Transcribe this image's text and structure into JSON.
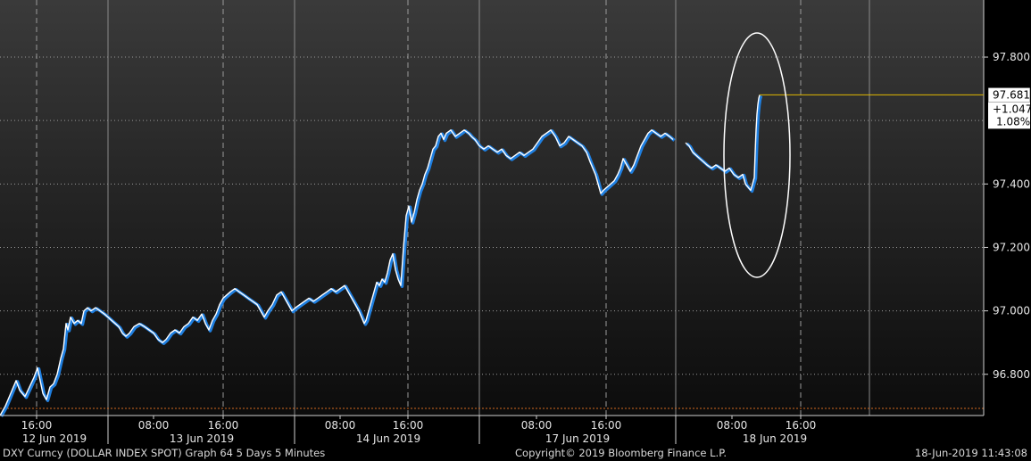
{
  "chart_data": {
    "type": "line",
    "ylim": [
      96.67,
      97.98
    ],
    "y_ticks": [
      "96.800",
      "97.000",
      "97.200",
      "97.400",
      "97.800"
    ],
    "y_tick_values": [
      96.8,
      97.0,
      97.2,
      97.4,
      97.8
    ],
    "x_ticks": [
      {
        "label": "16:00",
        "pos": 41
      },
      {
        "label": "08:00",
        "pos": 172
      },
      {
        "label": "16:00",
        "pos": 250
      },
      {
        "label": "08:00",
        "pos": 381
      },
      {
        "label": "16:00",
        "pos": 457
      },
      {
        "label": "08:00",
        "pos": 601
      },
      {
        "label": "16:00",
        "pos": 679
      },
      {
        "label": "08:00",
        "pos": 820
      },
      {
        "label": "16:00",
        "pos": 897
      }
    ],
    "x_range": [
      0,
      1102
    ],
    "day_labels": [
      {
        "label": "12 Jun 2019",
        "pos": 61
      },
      {
        "label": "13 Jun 2019",
        "pos": 226
      },
      {
        "label": "14 Jun 2019",
        "pos": 435
      },
      {
        "label": "17 Jun 2019",
        "pos": 647
      },
      {
        "label": "18 Jun 2019",
        "pos": 868
      }
    ],
    "day_separators": [
      121,
      330,
      537,
      757
    ],
    "solid_gridlines": [
      121,
      330,
      537,
      757,
      974
    ],
    "dashed_gridlines": [
      41,
      250,
      457,
      679,
      897
    ],
    "grid": true,
    "series": [
      {
        "values": [
          [
            0,
            96.67
          ],
          [
            6,
            96.7
          ],
          [
            12,
            96.74
          ],
          [
            18,
            96.78
          ],
          [
            22,
            96.75
          ],
          [
            28,
            96.73
          ],
          [
            33,
            96.76
          ],
          [
            38,
            96.79
          ],
          [
            42,
            96.82
          ],
          [
            45,
            96.78
          ],
          [
            48,
            96.74
          ],
          [
            52,
            96.72
          ],
          [
            56,
            96.76
          ],
          [
            60,
            96.77
          ],
          [
            64,
            96.8
          ],
          [
            68,
            96.85
          ],
          [
            71,
            96.88
          ],
          [
            74,
            96.96
          ],
          [
            76,
            96.94
          ],
          [
            79,
            96.98
          ],
          [
            83,
            96.96
          ],
          [
            87,
            96.97
          ],
          [
            91,
            96.96
          ],
          [
            94,
            97.0
          ],
          [
            98,
            97.01
          ],
          [
            102,
            97.0
          ],
          [
            107,
            97.01
          ],
          [
            112,
            97.0
          ],
          [
            117,
            96.99
          ],
          [
            121,
            96.98
          ],
          [
            125,
            96.97
          ],
          [
            129,
            96.96
          ],
          [
            133,
            96.95
          ],
          [
            137,
            96.93
          ],
          [
            141,
            96.92
          ],
          [
            145,
            96.93
          ],
          [
            150,
            96.95
          ],
          [
            156,
            96.96
          ],
          [
            162,
            96.95
          ],
          [
            167,
            96.94
          ],
          [
            172,
            96.93
          ],
          [
            177,
            96.91
          ],
          [
            182,
            96.9
          ],
          [
            186,
            96.91
          ],
          [
            191,
            96.93
          ],
          [
            196,
            96.94
          ],
          [
            201,
            96.93
          ],
          [
            206,
            96.95
          ],
          [
            211,
            96.96
          ],
          [
            216,
            96.98
          ],
          [
            221,
            96.97
          ],
          [
            226,
            96.99
          ],
          [
            230,
            96.96
          ],
          [
            234,
            96.94
          ],
          [
            238,
            96.97
          ],
          [
            242,
            96.99
          ],
          [
            246,
            97.02
          ],
          [
            250,
            97.04
          ],
          [
            254,
            97.05
          ],
          [
            258,
            97.06
          ],
          [
            263,
            97.07
          ],
          [
            268,
            97.06
          ],
          [
            273,
            97.05
          ],
          [
            278,
            97.04
          ],
          [
            283,
            97.03
          ],
          [
            288,
            97.02
          ],
          [
            292,
            97.0
          ],
          [
            296,
            96.98
          ],
          [
            300,
            97.0
          ],
          [
            305,
            97.02
          ],
          [
            310,
            97.05
          ],
          [
            315,
            97.06
          ],
          [
            319,
            97.04
          ],
          [
            323,
            97.02
          ],
          [
            327,
            97.0
          ],
          [
            331,
            97.01
          ],
          [
            336,
            97.02
          ],
          [
            341,
            97.03
          ],
          [
            346,
            97.04
          ],
          [
            351,
            97.03
          ],
          [
            356,
            97.04
          ],
          [
            361,
            97.05
          ],
          [
            366,
            97.06
          ],
          [
            371,
            97.07
          ],
          [
            376,
            97.06
          ],
          [
            381,
            97.07
          ],
          [
            386,
            97.08
          ],
          [
            390,
            97.06
          ],
          [
            394,
            97.04
          ],
          [
            398,
            97.02
          ],
          [
            402,
            97.0
          ],
          [
            405,
            96.98
          ],
          [
            408,
            96.96
          ],
          [
            410,
            96.97
          ],
          [
            413,
            97.0
          ],
          [
            416,
            97.03
          ],
          [
            419,
            97.06
          ],
          [
            422,
            97.09
          ],
          [
            425,
            97.08
          ],
          [
            428,
            97.1
          ],
          [
            431,
            97.09
          ],
          [
            434,
            97.12
          ],
          [
            437,
            97.16
          ],
          [
            440,
            97.18
          ],
          [
            443,
            97.13
          ],
          [
            446,
            97.1
          ],
          [
            449,
            97.08
          ],
          [
            452,
            97.2
          ],
          [
            455,
            97.3
          ],
          [
            458,
            97.33
          ],
          [
            461,
            97.28
          ],
          [
            464,
            97.31
          ],
          [
            467,
            97.35
          ],
          [
            470,
            97.38
          ],
          [
            473,
            97.4
          ],
          [
            476,
            97.43
          ],
          [
            479,
            97.45
          ],
          [
            482,
            97.48
          ],
          [
            485,
            97.51
          ],
          [
            488,
            97.52
          ],
          [
            491,
            97.55
          ],
          [
            494,
            97.56
          ],
          [
            497,
            97.54
          ],
          [
            500,
            97.56
          ],
          [
            505,
            97.57
          ],
          [
            510,
            97.55
          ],
          [
            515,
            97.56
          ],
          [
            520,
            97.57
          ],
          [
            525,
            97.56
          ],
          [
            528,
            97.55
          ],
          [
            532,
            97.54
          ],
          [
            537,
            97.52
          ],
          [
            542,
            97.51
          ],
          [
            547,
            97.52
          ],
          [
            552,
            97.51
          ],
          [
            557,
            97.5
          ],
          [
            562,
            97.51
          ],
          [
            567,
            97.49
          ],
          [
            572,
            97.48
          ],
          [
            577,
            97.49
          ],
          [
            582,
            97.5
          ],
          [
            587,
            97.49
          ],
          [
            592,
            97.5
          ],
          [
            597,
            97.51
          ],
          [
            602,
            97.53
          ],
          [
            607,
            97.55
          ],
          [
            612,
            97.56
          ],
          [
            617,
            97.57
          ],
          [
            622,
            97.55
          ],
          [
            627,
            97.52
          ],
          [
            632,
            97.53
          ],
          [
            637,
            97.55
          ],
          [
            642,
            97.54
          ],
          [
            647,
            97.53
          ],
          [
            652,
            97.52
          ],
          [
            657,
            97.5
          ],
          [
            661,
            97.47
          ],
          [
            664,
            97.45
          ],
          [
            667,
            97.43
          ],
          [
            670,
            97.4
          ],
          [
            673,
            97.37
          ],
          [
            676,
            97.38
          ],
          [
            680,
            97.39
          ],
          [
            684,
            97.4
          ],
          [
            688,
            97.41
          ],
          [
            692,
            97.43
          ],
          [
            695,
            97.45
          ],
          [
            698,
            97.48
          ],
          [
            702,
            97.46
          ],
          [
            706,
            97.44
          ],
          [
            710,
            97.46
          ],
          [
            714,
            97.49
          ],
          [
            718,
            97.52
          ],
          [
            722,
            97.54
          ],
          [
            726,
            97.56
          ],
          [
            730,
            97.57
          ],
          [
            735,
            97.56
          ],
          [
            740,
            97.55
          ],
          [
            745,
            97.56
          ],
          [
            750,
            97.55
          ],
          [
            754,
            97.54
          ],
          [
            768,
            97.53
          ],
          [
            772,
            97.52
          ],
          [
            776,
            97.5
          ],
          [
            780,
            97.49
          ],
          [
            784,
            97.48
          ],
          [
            788,
            97.47
          ],
          [
            792,
            97.46
          ],
          [
            797,
            97.45
          ],
          [
            802,
            97.46
          ],
          [
            807,
            97.45
          ],
          [
            812,
            97.44
          ],
          [
            817,
            97.45
          ],
          [
            822,
            97.43
          ],
          [
            827,
            97.42
          ],
          [
            832,
            97.43
          ],
          [
            835,
            97.4
          ],
          [
            838,
            97.39
          ],
          [
            841,
            97.38
          ],
          [
            843,
            97.4
          ],
          [
            845,
            97.42
          ],
          [
            846,
            97.5
          ],
          [
            847,
            97.57
          ],
          [
            848,
            97.62
          ],
          [
            849,
            97.65
          ],
          [
            850,
            97.67
          ],
          [
            851,
            97.681
          ]
        ]
      }
    ],
    "last_value_label": "97.681",
    "change_label": "+1.047",
    "change_pct_label": "1.08%",
    "line_color": "#ffffff",
    "line_shadow_color": "#1f7fe0",
    "last_price_line_color": "#e0b800",
    "highlight": "ellipse"
  },
  "footer": {
    "left": "DXY Curncy (DOLLAR INDEX SPOT) Graph 64 5 Days 5 Minutes",
    "center": "Copyright© 2019 Bloomberg Finance L.P.",
    "right": "18-Jun-2019 11:43:08"
  }
}
